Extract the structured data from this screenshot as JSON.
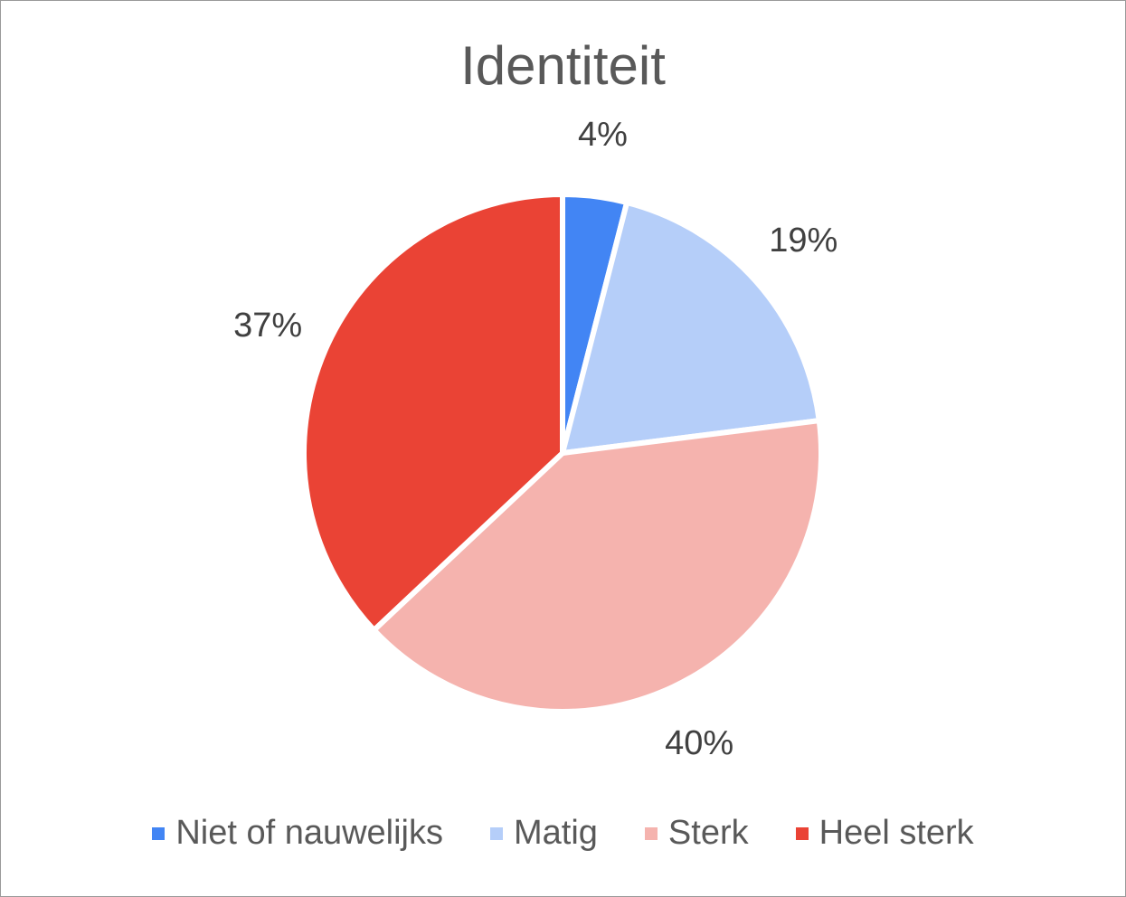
{
  "chart_data": {
    "type": "pie",
    "title": "Identiteit",
    "categories": [
      "Niet of nauwelijks",
      "Matig",
      "Sterk",
      "Heel sterk"
    ],
    "values": [
      4,
      19,
      40,
      37
    ],
    "labels": [
      "4%",
      "19%",
      "40%",
      "37%"
    ],
    "colors": [
      "#4285f4",
      "#b5cef9",
      "#f5b3ae",
      "#ea4335"
    ],
    "legend_position": "bottom",
    "start_angle": "12 o'clock",
    "direction": "clockwise"
  }
}
